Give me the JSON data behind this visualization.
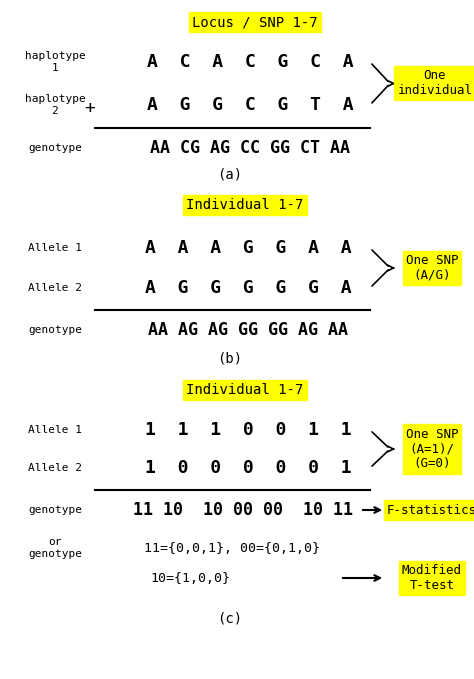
{
  "bg_color": "#ffffff",
  "yellow": "#FFFF00",
  "panel_a": {
    "label_box": "Locus / SNP 1-7",
    "hap1_label": "haplotype\n1",
    "hap1_seq": "A  C  A  C  G  C  A",
    "hap2_label": "haplotype\n2",
    "hap2_seq": "A  G  G  C  G  T  A",
    "plus": "+",
    "geno_label": "genotype",
    "geno_seq": "AA CG AG CC GG CT AA",
    "bracket_label": "One\nindividual",
    "subfig": "(a)"
  },
  "panel_b": {
    "label_box": "Individual 1-7",
    "allele1_label": "Allele 1",
    "allele1_seq": "A  A  A  G  G  A  A",
    "allele2_label": "Allele 2",
    "allele2_seq": "A  G  G  G  G  G  A",
    "geno_label": "genotype",
    "geno_seq": "AA AG AG GG GG AG AA",
    "bracket_label": "One SNP\n(A/G)",
    "subfig": "(b)"
  },
  "panel_c": {
    "label_box": "Individual 1-7",
    "allele1_label": "Allele 1",
    "allele1_seq": "1  1  1  0  0  1  1",
    "allele2_label": "Allele 2",
    "allele2_seq": "1  0  0  0  0  0  1",
    "geno_label": "genotype",
    "geno_seq": "11 10  10 00 00  10 11",
    "or_label": "or\ngenotype",
    "geno2_seq": "11={0,0,1}, 00={0,1,0}",
    "geno3_seq": "10={1,0,0}",
    "bracket_label": "One SNP\n(A=1)/\n(G=0)",
    "arrow1_label": "F-statistics",
    "arrow2_label": "Modified\nT-test",
    "subfig": "(c)"
  }
}
